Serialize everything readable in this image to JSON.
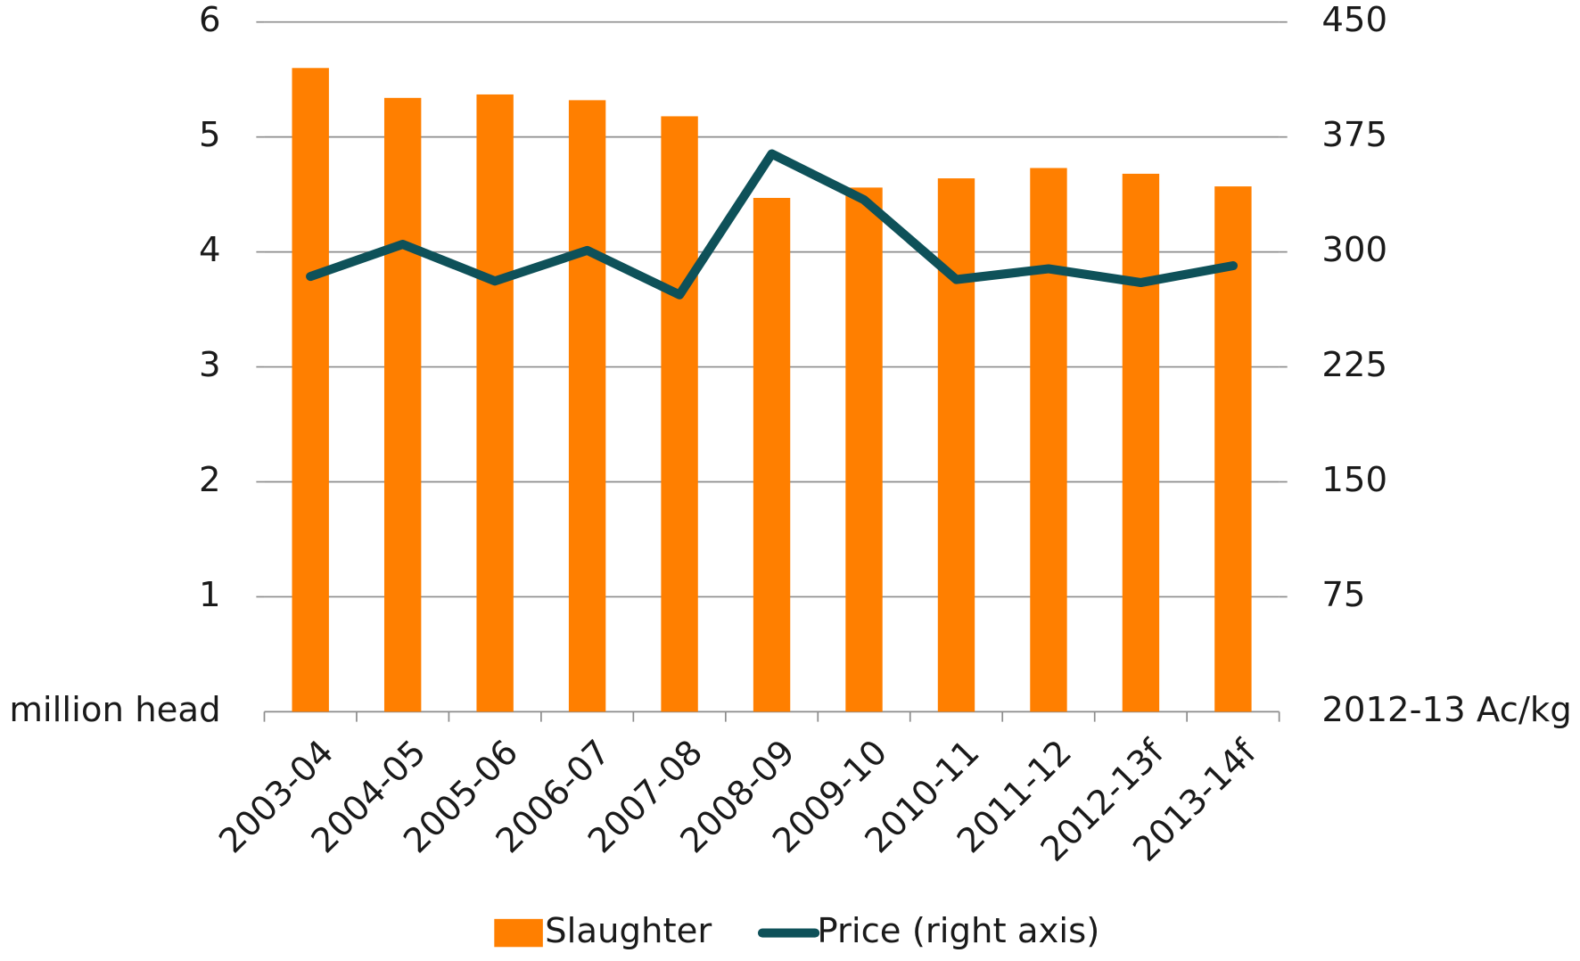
{
  "chart_data": {
    "type": "bar_line",
    "categories": [
      "2003-04",
      "2004-05",
      "2005-06",
      "2006-07",
      "2007-08",
      "2008-09",
      "2009-10",
      "2010-11",
      "2011-12",
      "2012-13f",
      "2013-14f"
    ],
    "series": [
      {
        "name": "Slaughter",
        "color": "#ff7f00",
        "type": "bar",
        "values": [
          5.6,
          5.34,
          5.37,
          5.32,
          5.18,
          4.47,
          4.56,
          4.64,
          4.73,
          4.68,
          4.57
        ]
      },
      {
        "name": "Price (right axis)",
        "color": "#0e5159",
        "type": "line",
        "axis": "y2",
        "values": [
          284,
          305,
          281,
          301,
          272,
          364,
          334,
          282,
          289,
          280,
          291
        ]
      }
    ],
    "ylabel": "million head",
    "y2label": "2012-13 Ac/kg",
    "ylim": [
      0,
      6
    ],
    "yticks": [
      1,
      2,
      3,
      4,
      5,
      6
    ],
    "y2lim": [
      0,
      450
    ],
    "y2ticks": [
      75,
      150,
      225,
      300,
      375,
      450
    ],
    "grid": true,
    "legend": "bottom"
  }
}
